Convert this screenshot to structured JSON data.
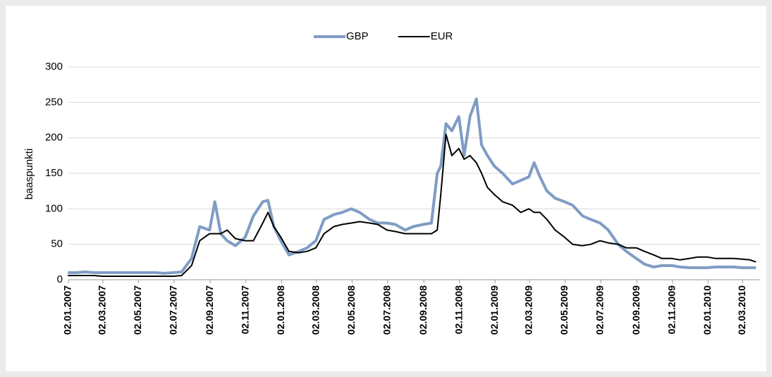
{
  "chart_data": {
    "type": "line",
    "y_label": "baaspunkti",
    "x": [
      "01.01.2007",
      "15.01.2007",
      "01.02.2007",
      "15.02.2007",
      "01.03.2007",
      "15.03.2007",
      "01.04.2007",
      "15.04.2007",
      "01.05.2007",
      "15.05.2007",
      "01.06.2007",
      "15.06.2007",
      "01.07.2007",
      "15.07.2007",
      "01.08.2007",
      "15.08.2007",
      "01.09.2007",
      "10.09.2007",
      "20.09.2007",
      "01.10.2007",
      "15.10.2007",
      "01.11.2007",
      "15.11.2007",
      "01.12.2007",
      "10.12.2007",
      "20.12.2007",
      "01.01.2008",
      "15.01.2008",
      "01.02.2008",
      "15.02.2008",
      "01.03.2008",
      "15.03.2008",
      "01.04.2008",
      "15.04.2008",
      "01.05.2008",
      "15.05.2008",
      "01.06.2008",
      "15.06.2008",
      "01.07.2008",
      "15.07.2008",
      "01.08.2008",
      "15.08.2008",
      "01.09.2008",
      "15.09.2008",
      "25.09.2008",
      "01.10.2008",
      "10.10.2008",
      "20.10.2008",
      "01.11.2008",
      "10.11.2008",
      "20.11.2008",
      "01.12.2008",
      "10.12.2008",
      "20.12.2008",
      "01.01.2009",
      "15.01.2009",
      "01.02.2009",
      "15.02.2009",
      "01.03.2009",
      "10.03.2009",
      "20.03.2009",
      "01.04.2009",
      "15.04.2009",
      "01.05.2009",
      "15.05.2009",
      "01.06.2009",
      "15.06.2009",
      "01.07.2009",
      "15.07.2009",
      "01.08.2009",
      "15.08.2009",
      "01.09.2009",
      "15.09.2009",
      "01.10.2009",
      "15.10.2009",
      "01.11.2009",
      "15.11.2009",
      "01.12.2009",
      "15.12.2009",
      "01.01.2010",
      "15.01.2010",
      "01.02.2010",
      "15.02.2010",
      "01.03.2010",
      "15.03.2010",
      "25.03.2010"
    ],
    "series": [
      {
        "name": "GBP",
        "color": "#7f9cc4",
        "values": [
          10,
          10,
          11,
          10,
          10,
          10,
          10,
          10,
          10,
          10,
          10,
          9,
          10,
          11,
          30,
          75,
          70,
          110,
          65,
          55,
          48,
          60,
          90,
          110,
          112,
          75,
          55,
          35,
          40,
          45,
          55,
          85,
          92,
          95,
          100,
          95,
          85,
          80,
          80,
          78,
          70,
          75,
          78,
          80,
          150,
          160,
          220,
          210,
          230,
          175,
          230,
          255,
          190,
          175,
          160,
          150,
          135,
          140,
          145,
          165,
          145,
          125,
          115,
          110,
          105,
          90,
          85,
          80,
          70,
          50,
          40,
          30,
          22,
          18,
          20,
          20,
          18,
          17,
          17,
          17,
          18,
          18,
          18,
          17,
          17,
          17
        ]
      },
      {
        "name": "EUR",
        "color": "#000000",
        "values": [
          6,
          6,
          6,
          6,
          5,
          5,
          5,
          5,
          5,
          5,
          5,
          5,
          5,
          6,
          20,
          55,
          65,
          65,
          65,
          70,
          58,
          55,
          55,
          80,
          95,
          75,
          60,
          40,
          38,
          40,
          45,
          65,
          75,
          78,
          80,
          82,
          80,
          78,
          70,
          68,
          65,
          65,
          65,
          65,
          70,
          120,
          205,
          175,
          185,
          170,
          175,
          165,
          150,
          130,
          120,
          110,
          105,
          95,
          100,
          95,
          95,
          85,
          70,
          60,
          50,
          48,
          50,
          55,
          52,
          50,
          45,
          45,
          40,
          35,
          30,
          30,
          28,
          30,
          32,
          32,
          30,
          30,
          30,
          29,
          28,
          25
        ]
      }
    ],
    "xlim": [
      "02.01.2007",
      "01.04.2010"
    ],
    "xticks": [
      "02.01.2007",
      "02.03.2007",
      "02.05.2007",
      "02.07.2007",
      "02.09.2007",
      "02.11.2007",
      "02.01.2008",
      "02.03.2008",
      "02.05.2008",
      "02.07.2008",
      "02.09.2008",
      "02.11.2008",
      "02.01.2009",
      "02.03.2009",
      "02.05.2009",
      "02.07.2009",
      "02.09.2009",
      "02.11.2009",
      "02.01.2010",
      "02.03.2010"
    ],
    "ylim": [
      0,
      300
    ],
    "yticks": [
      0,
      50,
      100,
      150,
      200,
      250,
      300
    ],
    "grid": true,
    "legend": "top"
  }
}
